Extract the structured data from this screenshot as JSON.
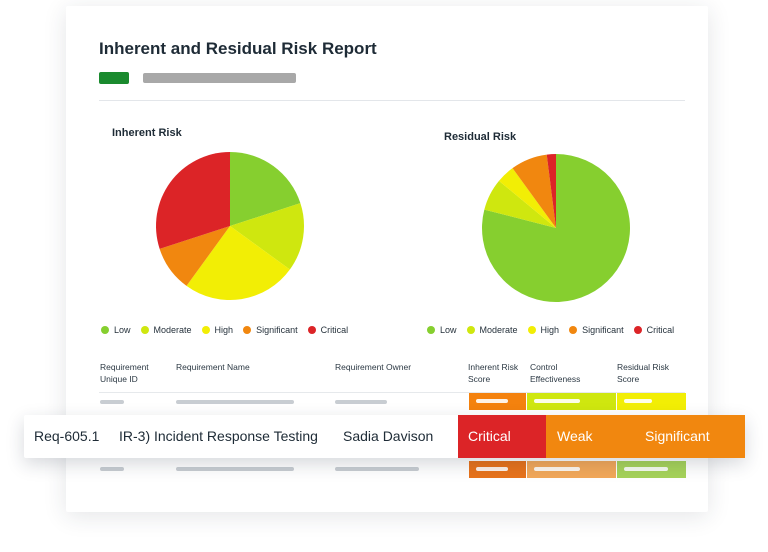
{
  "report": {
    "title": "Inherent and Residual Risk Report",
    "status_color": "#1a8a2e"
  },
  "colors": {
    "Low": "#86cf2f",
    "Moderate": "#cfe70f",
    "High": "#f2ee05",
    "Significant": "#f1870f",
    "Critical": "#dc2427"
  },
  "chart_data": [
    {
      "type": "pie",
      "title": "Inherent Risk",
      "categories": [
        "Low",
        "Moderate",
        "High",
        "Significant",
        "Critical"
      ],
      "values": [
        20,
        15,
        25,
        10,
        30
      ],
      "legend": "bottom"
    },
    {
      "type": "pie",
      "title": "Residual Risk",
      "categories": [
        "Low",
        "Moderate",
        "High",
        "Significant",
        "Critical"
      ],
      "values": [
        79,
        7,
        4,
        8,
        2
      ],
      "legend": "bottom"
    }
  ],
  "table": {
    "headers": [
      "Requirement\nUnique ID",
      "Requirement Name",
      "Requirement Owner",
      "Inherent Risk\nScore",
      "Control\nEffectiveness",
      "Residual Risk\nScore"
    ],
    "placeholder_rows": [
      {
        "colors": [
          "#f4820e",
          "#cfe70f",
          "#f2ee05"
        ]
      },
      {
        "colors": [
          "#e8731b",
          "#f2a85a",
          "#a6d35a"
        ]
      }
    ],
    "highlight": {
      "id": "Req-605.1",
      "name": "IR-3) Incident Response Testing",
      "owner": "Sadia Davison",
      "inherent": "Critical",
      "effectiveness": "Weak",
      "residual": "Significant",
      "inherent_color": "#dc2427",
      "effectiveness_color": "#f1870f",
      "residual_color": "#f1870f"
    }
  }
}
